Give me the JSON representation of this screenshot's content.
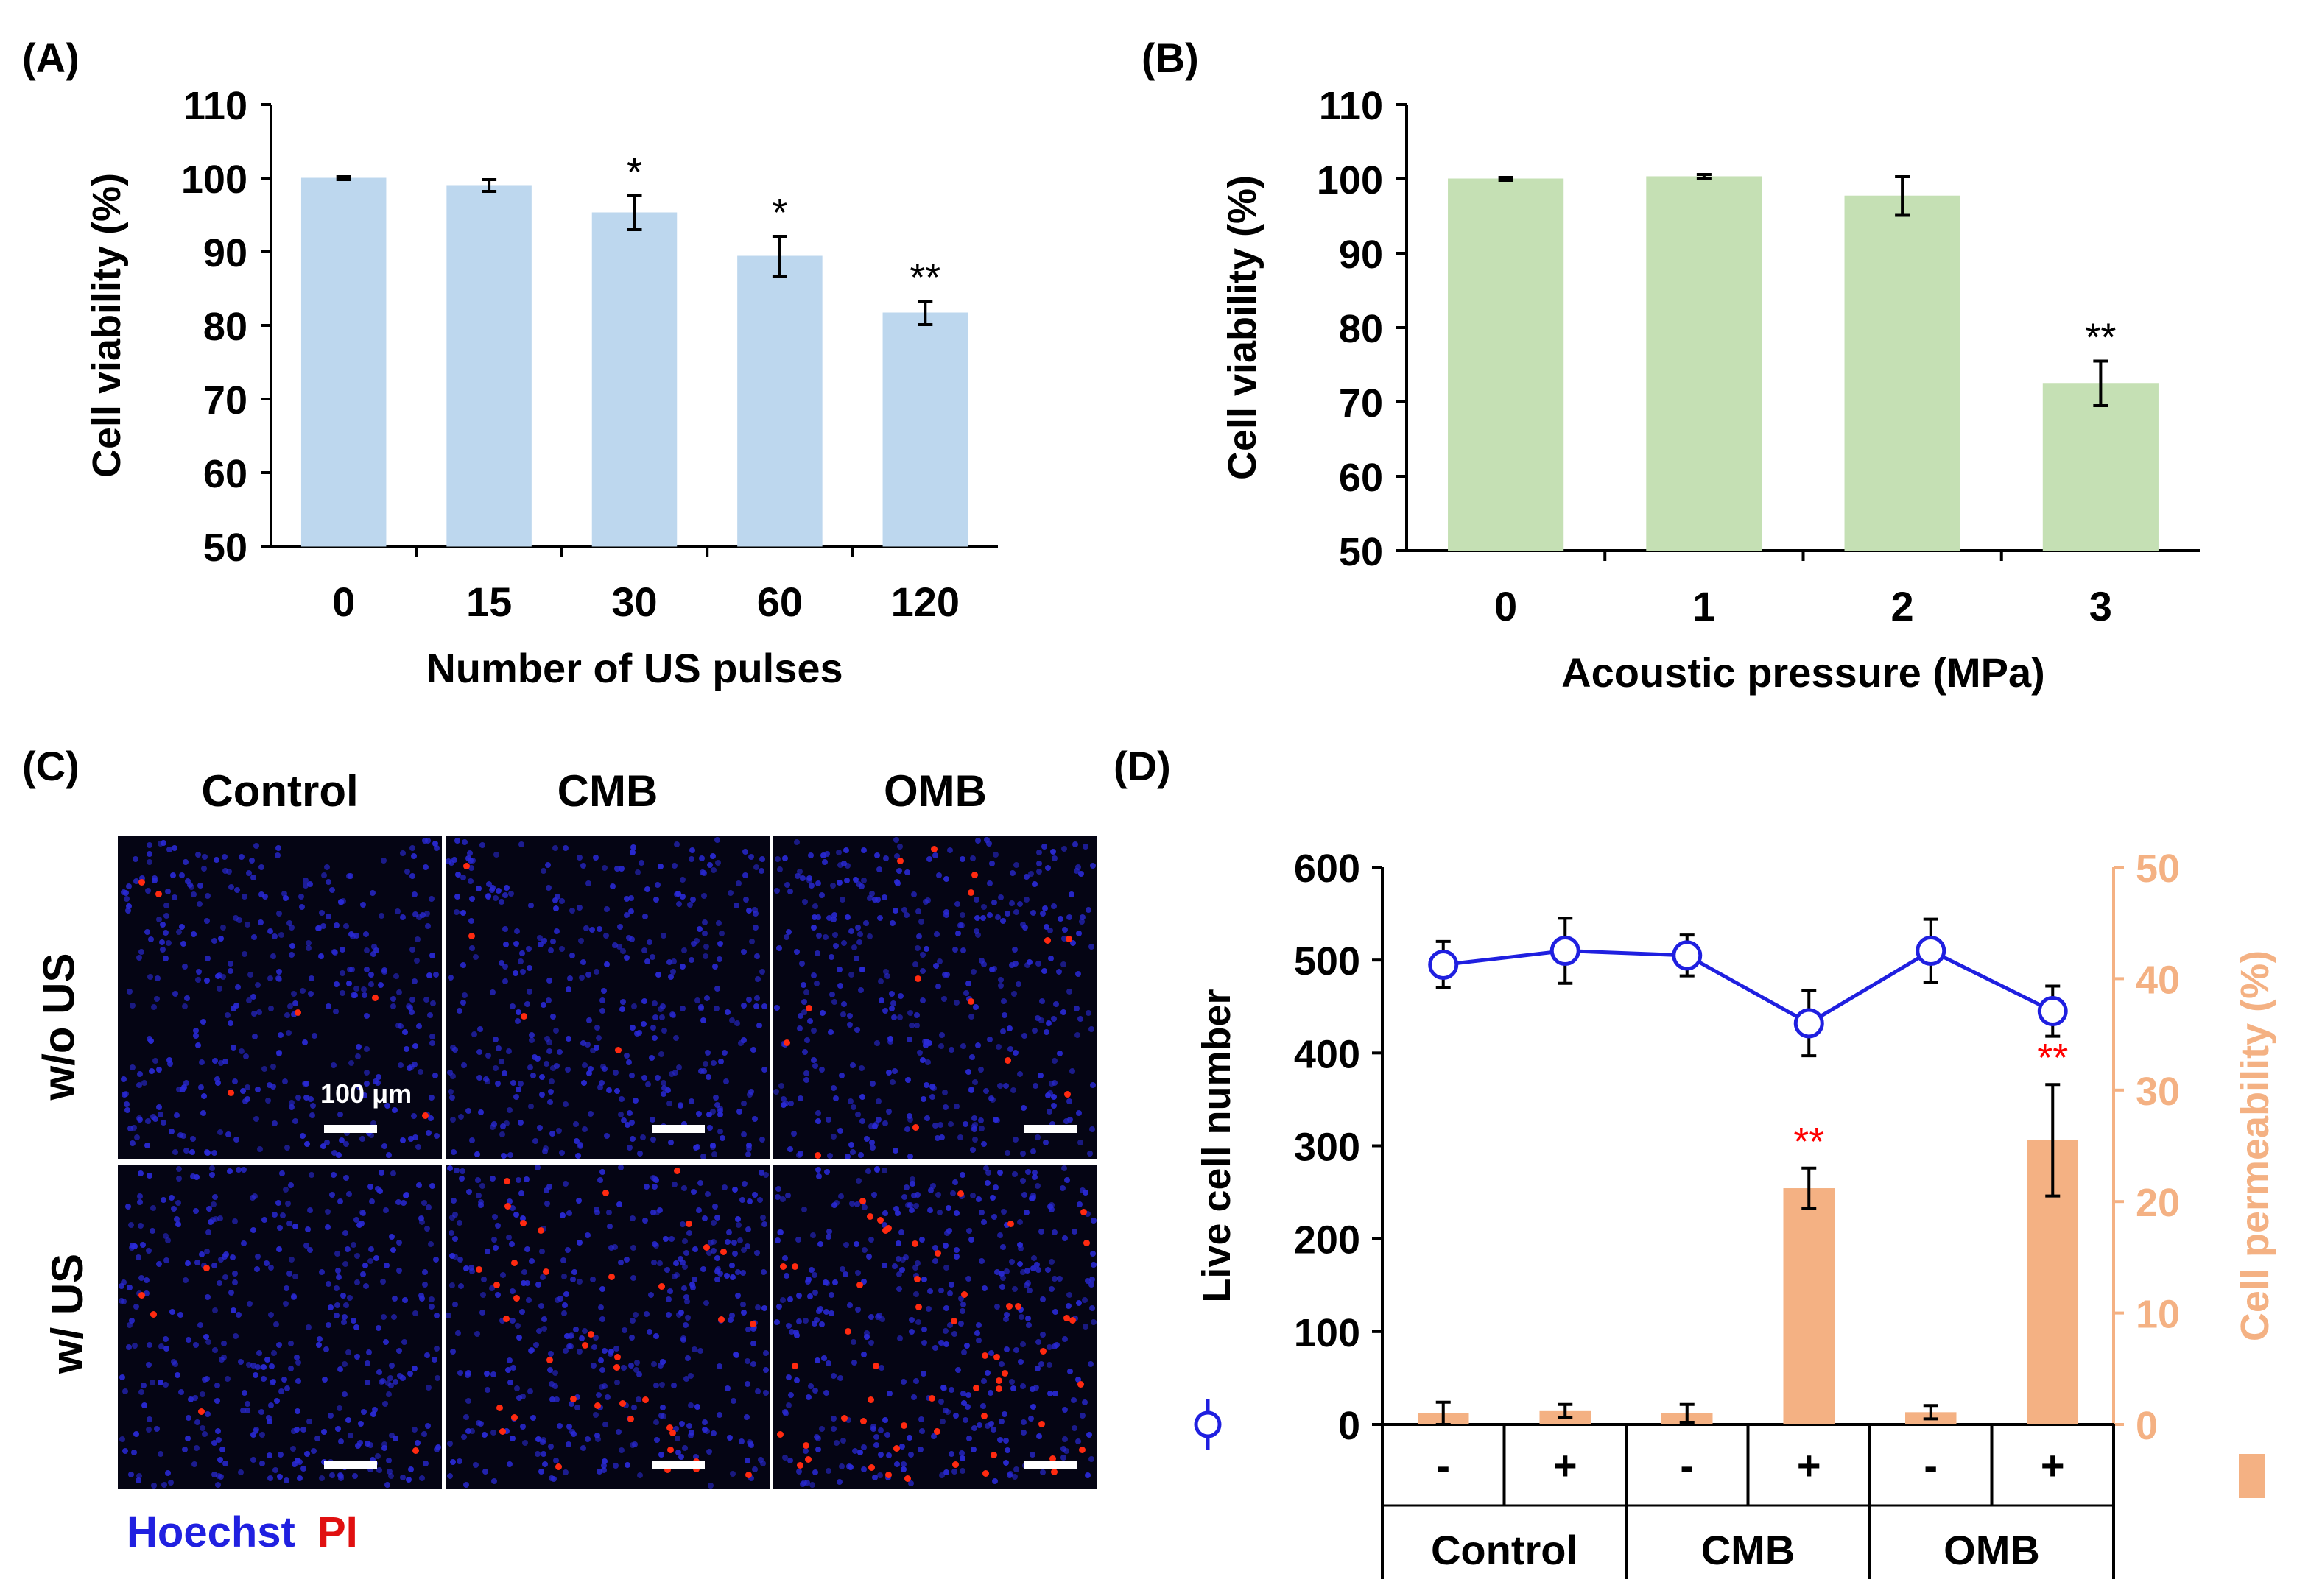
{
  "panels": {
    "A": {
      "tag": "(A)"
    },
    "B": {
      "tag": "(B)"
    },
    "C": {
      "tag": "(C)"
    },
    "D": {
      "tag": "(D)"
    }
  },
  "chart_data": [
    {
      "id": "A",
      "type": "bar",
      "xlabel": "Number of US pulses",
      "ylabel": "Cell viability (%)",
      "categories": [
        "0",
        "15",
        "30",
        "60",
        "120"
      ],
      "values": [
        100,
        99,
        95.3,
        89.4,
        81.7
      ],
      "errors": [
        0.2,
        0.8,
        2.3,
        2.7,
        1.6
      ],
      "annotations": [
        "",
        "",
        "*",
        "*",
        "**"
      ],
      "ylim": [
        50,
        110
      ],
      "yticks": [
        50,
        60,
        70,
        80,
        90,
        100,
        110
      ],
      "color": "#bdd7ee"
    },
    {
      "id": "B",
      "type": "bar",
      "xlabel": "Acoustic pressure (MPa)",
      "ylabel": "Cell viability (%)",
      "categories": [
        "0",
        "1",
        "2",
        "3"
      ],
      "values": [
        100,
        100.3,
        97.7,
        72.5
      ],
      "errors": [
        0.2,
        0.3,
        2.6,
        3.0
      ],
      "annotations": [
        "",
        "",
        "",
        "**"
      ],
      "ylim": [
        50,
        110
      ],
      "yticks": [
        50,
        60,
        70,
        80,
        90,
        100,
        110
      ],
      "color": "#c5e0b4"
    },
    {
      "id": "D",
      "type": "bar+line",
      "ylabel_left": "Live cell number",
      "ylabel_right": "Cell permeability (%)",
      "ylim_left": [
        0,
        600
      ],
      "yticks_left": [
        0,
        100,
        200,
        300,
        400,
        500,
        600
      ],
      "ylim_right": [
        0,
        50
      ],
      "yticks_right": [
        0,
        10,
        20,
        30,
        40,
        50
      ],
      "us_labels": [
        "-",
        "+",
        "-",
        "+",
        "-",
        "+"
      ],
      "groups": [
        "Control",
        "CMB",
        "OMB"
      ],
      "series": [
        {
          "kind": "line",
          "axis": "left",
          "color": "#1f1fe0",
          "values": [
            495,
            510,
            505,
            432,
            510,
            445
          ],
          "errors": [
            25,
            35,
            22,
            35,
            34,
            27
          ]
        },
        {
          "kind": "bar",
          "axis": "right",
          "color": "#f4b183",
          "values": [
            1,
            1.2,
            1,
            21.2,
            1.1,
            25.5
          ],
          "errors": [
            1,
            0.6,
            0.8,
            1.8,
            0.6,
            5.0
          ]
        }
      ],
      "annotations": [
        {
          "index": 3,
          "text": "**",
          "color": "#ff0000"
        },
        {
          "index": 5,
          "text": "**",
          "color": "#ff0000"
        }
      ]
    }
  ],
  "micrographs": {
    "columns": [
      "Control",
      "CMB",
      "OMB"
    ],
    "rows": [
      "w/o US",
      "w/ US"
    ],
    "scale_label": "100 μm",
    "legend": {
      "hoechst": "Hoechst",
      "pi": "PI",
      "hoechst_color": "#2020e0",
      "pi_color": "#e01010"
    }
  }
}
